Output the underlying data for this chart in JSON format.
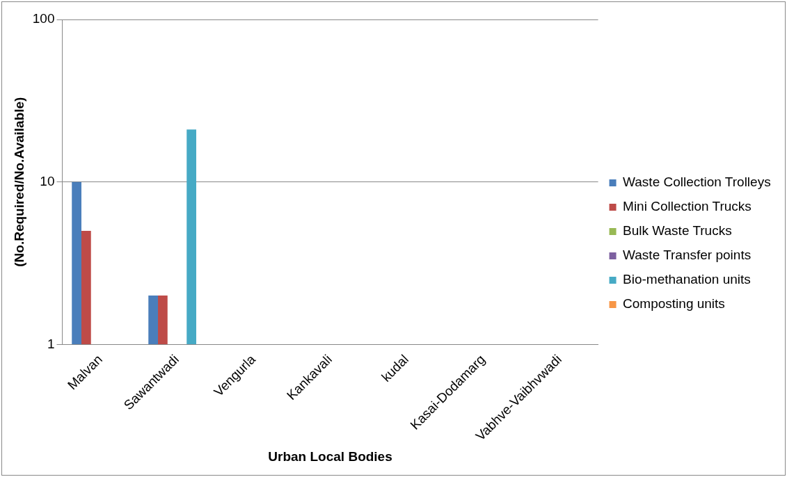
{
  "chart_data": {
    "type": "bar",
    "xlabel": "Urban Local Bodies",
    "ylabel": "(No.Required/No.Available)",
    "categories": [
      "Malvan",
      "Sawantwadi",
      "Vengurla",
      "Kankavali",
      "kudal",
      "Kasai-Dodamarg",
      "Vabhve-Vaibhvwadi"
    ],
    "series": [
      {
        "name": "Waste Collection Trolleys",
        "color": "#4a7ebb",
        "values": [
          10,
          2,
          null,
          null,
          null,
          null,
          null
        ]
      },
      {
        "name": "Mini Collection Trucks",
        "color": "#be4b48",
        "values": [
          5,
          2,
          null,
          null,
          null,
          null,
          null
        ]
      },
      {
        "name": "Bulk Waste Trucks",
        "color": "#98b954",
        "values": [
          null,
          null,
          null,
          null,
          null,
          null,
          null
        ]
      },
      {
        "name": "Waste Transfer points",
        "color": "#7d60a0",
        "values": [
          null,
          null,
          null,
          null,
          null,
          null,
          null
        ]
      },
      {
        "name": "Bio-methanation units",
        "color": "#46aac5",
        "values": [
          null,
          21,
          null,
          null,
          null,
          null,
          null
        ]
      },
      {
        "name": "Composting units",
        "color": "#f79646",
        "values": [
          null,
          null,
          null,
          null,
          null,
          null,
          null
        ]
      }
    ],
    "log": true,
    "ylim": [
      1,
      100
    ],
    "yticks": [
      1,
      10,
      100
    ],
    "grid": "y",
    "legend": "right"
  }
}
